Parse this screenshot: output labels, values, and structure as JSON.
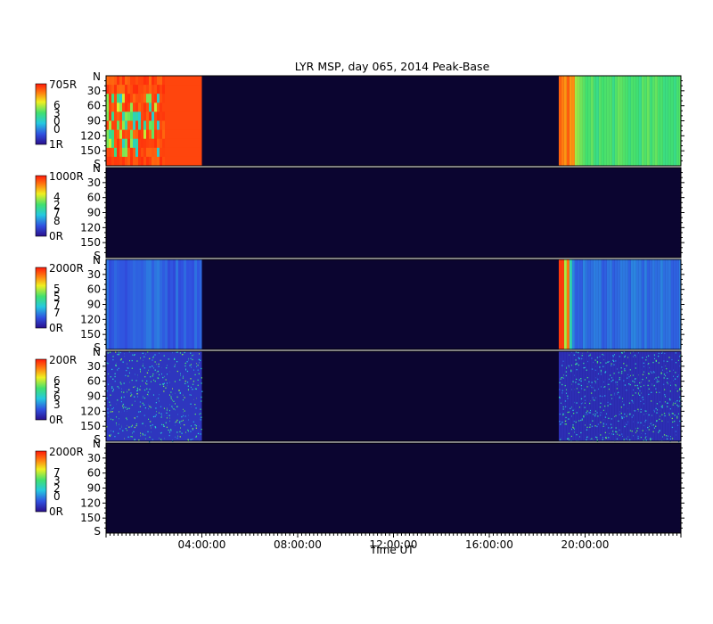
{
  "chart_data": {
    "type": "heatmap",
    "title": "LYR MSP, day 065, 2014 Peak-Base",
    "xlabel": "Time UT",
    "x_ticks": [
      "04:00:00",
      "08:00:00",
      "12:00:00",
      "16:00:00",
      "20:00:00"
    ],
    "x_tick_hours": [
      4,
      8,
      12,
      16,
      20
    ],
    "x_range_hours": [
      0,
      24
    ],
    "y_range_deg": [
      0,
      180
    ],
    "y_ticks": [
      "30",
      "60",
      "90",
      "120",
      "150"
    ],
    "y_tick_values": [
      30,
      60,
      90,
      120,
      150
    ],
    "y_end_labels": {
      "top": "N",
      "bottom": "S"
    },
    "colorscale": [
      "#2a0f8c",
      "#3050e0",
      "#25c8e0",
      "#40e070",
      "#f0f020",
      "#ff8010",
      "#ff1a0a"
    ],
    "background_color": "#0b0530",
    "panels": [
      {
        "name": "",
        "cbar_max": "705R",
        "cbar_min": "1R",
        "cbar_digits": [
          "6",
          "3",
          "0",
          "0"
        ],
        "segments": [
          {
            "start_hour": 0,
            "end_hour": 4.0,
            "level": 0.92,
            "pattern": "red-patchy"
          },
          {
            "start_hour": 18.9,
            "end_hour": 24,
            "level": 0.55,
            "pattern": "red-to-green"
          }
        ]
      },
      {
        "name": "",
        "cbar_max": "1000R",
        "cbar_min": "0R",
        "cbar_digits": [
          "4",
          "2",
          "7",
          "8"
        ],
        "segments": []
      },
      {
        "name": "",
        "cbar_max": "2000R",
        "cbar_min": "0R",
        "cbar_digits": [
          "5",
          "5",
          "7",
          "7"
        ],
        "segments": [
          {
            "start_hour": 0,
            "end_hour": 4.0,
            "level": 0.15,
            "pattern": "blue-stripes"
          },
          {
            "start_hour": 18.9,
            "end_hour": 24,
            "level": 0.18,
            "pattern": "bright-bands"
          }
        ]
      },
      {
        "name": "",
        "cbar_max": "200R",
        "cbar_min": "0R",
        "cbar_digits": [
          "6",
          "5",
          "6",
          "3"
        ],
        "segments": [
          {
            "start_hour": 0,
            "end_hour": 4.0,
            "level": 0.25,
            "pattern": "speckle"
          },
          {
            "start_hour": 18.9,
            "end_hour": 24,
            "level": 0.2,
            "pattern": "speckle"
          }
        ]
      },
      {
        "name": "",
        "cbar_max": "2000R",
        "cbar_min": "0R",
        "cbar_digits": [
          "7",
          "3",
          "2",
          "0"
        ],
        "segments": []
      }
    ]
  }
}
